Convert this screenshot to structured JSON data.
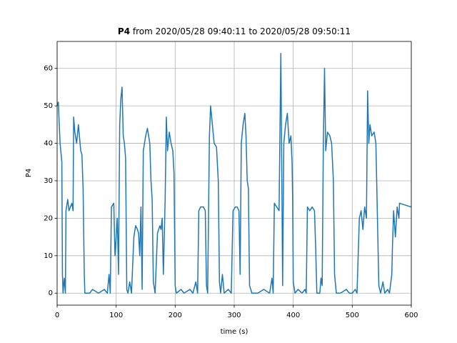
{
  "chart_data": {
    "type": "line",
    "title": "P4 from 2020/05/28 09:40:11 to 2020/05/28 09:50:11",
    "xlabel": "time (s)",
    "ylabel": "P4",
    "x": [
      0,
      2,
      5,
      8,
      9,
      10,
      12,
      14,
      15,
      18,
      20,
      25,
      27,
      28,
      30,
      33,
      36,
      40,
      42,
      44,
      46,
      47,
      55,
      60,
      70,
      80,
      85,
      88,
      90,
      92,
      96,
      98,
      100,
      102,
      104,
      106,
      108,
      110,
      112,
      114,
      116,
      118,
      120,
      123,
      126,
      130,
      133,
      136,
      138,
      140,
      142,
      144,
      146,
      150,
      153,
      157,
      159,
      161,
      163,
      166,
      170,
      174,
      176,
      178,
      180,
      183,
      185,
      187,
      190,
      193,
      196,
      198,
      200,
      202,
      210,
      215,
      225,
      230,
      235,
      238,
      240,
      243,
      248,
      251,
      253,
      255,
      258,
      260,
      263,
      266,
      270,
      273,
      275,
      277,
      280,
      283,
      290,
      295,
      298,
      302,
      305,
      308,
      310,
      312,
      315,
      318,
      320,
      322,
      324,
      326,
      330,
      340,
      350,
      360,
      364,
      366,
      368,
      372,
      376,
      379,
      380,
      382,
      384,
      387,
      390,
      393,
      396,
      398,
      399,
      400,
      403,
      408,
      415,
      420,
      422,
      424,
      428,
      432,
      436,
      438,
      440,
      445,
      447,
      449,
      451,
      453,
      455,
      458,
      462,
      465,
      468,
      470,
      473,
      480,
      490,
      495,
      500,
      505,
      508,
      512,
      515,
      518,
      521,
      524,
      526,
      528,
      530,
      533,
      537,
      540,
      542,
      545,
      548,
      552,
      555,
      560,
      563,
      567,
      568,
      570,
      573,
      576,
      579,
      580,
      600
    ],
    "series": [
      {
        "name": "P4",
        "color": "#1f77b4",
        "values": [
          50,
          51,
          40,
          35,
          5,
          0,
          4,
          0,
          22,
          25,
          22,
          24,
          22,
          47,
          43,
          40,
          45,
          38,
          37,
          28,
          5,
          0,
          0,
          1,
          0,
          1,
          0,
          5,
          0,
          23,
          24,
          10,
          15,
          20,
          5,
          45,
          52,
          55,
          42,
          40,
          36,
          1,
          0,
          3,
          0,
          15,
          18,
          17,
          16,
          10,
          23,
          1,
          38,
          42,
          44,
          40,
          30,
          25,
          3,
          0,
          16,
          18,
          17,
          20,
          5,
          25,
          47,
          38,
          43,
          40,
          38,
          32,
          2,
          0,
          1,
          0,
          1,
          0,
          3,
          0,
          22,
          23,
          23,
          22,
          2,
          0,
          42,
          50,
          45,
          40,
          39,
          30,
          3,
          0,
          5,
          0,
          1,
          0,
          22,
          23,
          23,
          22,
          5,
          40,
          45,
          48,
          42,
          30,
          28,
          2,
          0,
          0,
          1,
          0,
          4,
          0,
          24,
          23,
          22,
          64,
          45,
          2,
          40,
          45,
          48,
          40,
          42,
          35,
          25,
          3,
          0,
          1,
          0,
          1,
          0,
          23,
          22,
          23,
          22,
          12,
          0,
          0,
          4,
          2,
          40,
          60,
          38,
          43,
          42,
          40,
          30,
          5,
          0,
          0,
          1,
          0,
          0,
          1,
          0,
          20,
          22,
          17,
          23,
          20,
          54,
          40,
          45,
          42,
          43,
          40,
          25,
          2,
          0,
          3,
          0,
          1,
          0,
          5,
          12,
          22,
          15,
          23,
          20,
          24,
          23
        ]
      }
    ],
    "xlim": [
      0,
      600
    ],
    "ylim": [
      -3.2,
      67.2
    ],
    "xticks": [
      0,
      100,
      200,
      300,
      400,
      500,
      600
    ],
    "yticks": [
      0,
      10,
      20,
      30,
      40,
      50,
      60
    ],
    "grid": true
  }
}
